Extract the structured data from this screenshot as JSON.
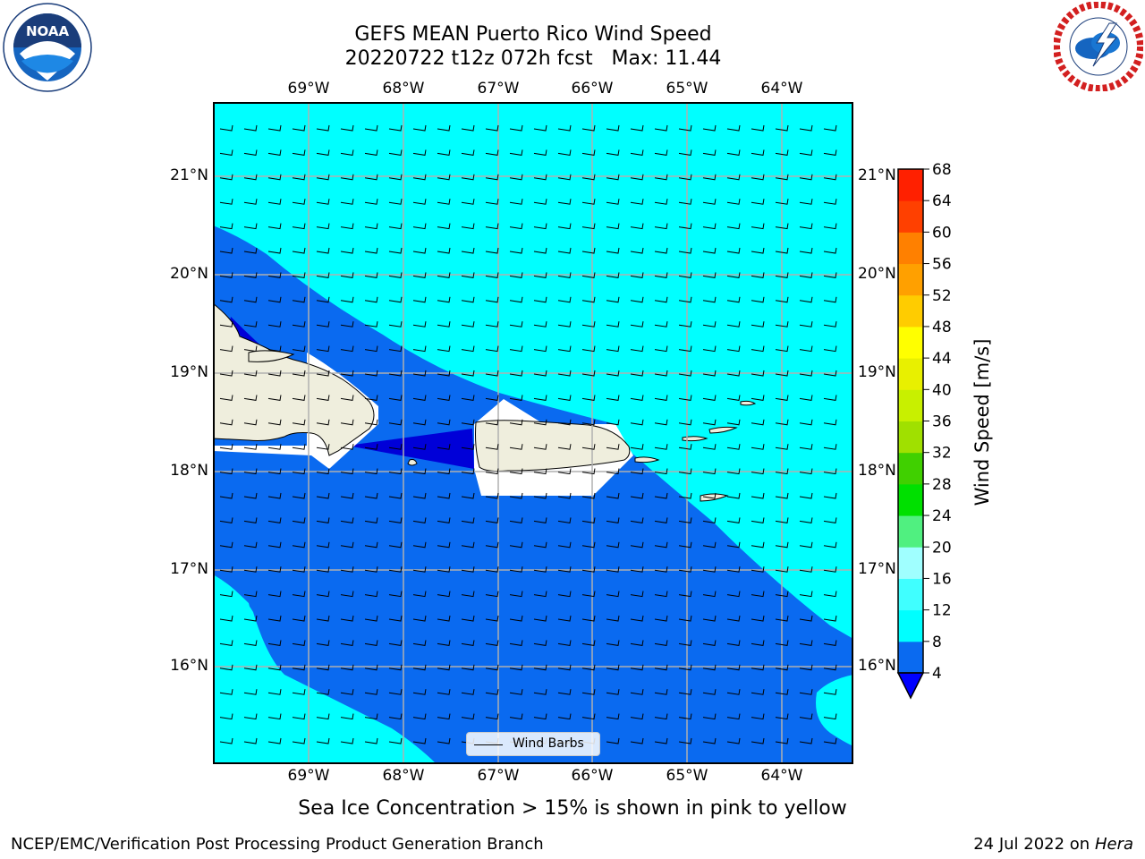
{
  "title": {
    "line1": "GEFS MEAN Puerto Rico Wind Speed",
    "line2": "20220722 t12z 072h fcst   Max: 11.44"
  },
  "map": {
    "lon_labels": [
      "69°W",
      "68°W",
      "67°W",
      "66°W",
      "65°W",
      "64°W"
    ],
    "lat_labels": [
      "21°N",
      "20°N",
      "19°N",
      "18°N",
      "17°N",
      "16°N"
    ],
    "lon_range": [
      -70.0,
      -63.25
    ],
    "lat_range": [
      15.0,
      21.75
    ],
    "barb_direction": "from east",
    "colors": {
      "speed_4_8": "#0a6af0",
      "speed_8_12": "#00ffff",
      "speed_below_4": "#0000d8",
      "land": "#efeedd",
      "missing": "#ffffff",
      "grid": "#b0b0b0"
    },
    "legend": {
      "label": "Wind Barbs"
    }
  },
  "colorbar": {
    "label": "Wind Speed [m/s]",
    "ticks": [
      "4",
      "8",
      "12",
      "16",
      "20",
      "24",
      "28",
      "32",
      "36",
      "40",
      "44",
      "48",
      "52",
      "56",
      "60",
      "64",
      "68"
    ],
    "colors": [
      "#0a6af0",
      "#00ffff",
      "#40ffff",
      "#a0ffff",
      "#50f080",
      "#00e000",
      "#40d000",
      "#a0e000",
      "#c8f000",
      "#e8f000",
      "#ffff00",
      "#ffcc00",
      "#ffa000",
      "#ff8000",
      "#ff4000",
      "#ff2000",
      "#ff0000"
    ],
    "under_color": "#0000ff"
  },
  "footer": {
    "note": "Sea Ice Concentration > 15% is shown in pink to yellow",
    "left": "NCEP/EMC/Verification Post Processing Product Generation Branch",
    "right_date": "24 Jul 2022 on",
    "right_host": "Hera"
  },
  "logos": {
    "noaa": "NOAA",
    "noaa_ring": "NATIONAL OCEANIC AND ATMOSPHERIC ADMINISTRATION",
    "nws_ring": "NATIONAL WEATHER SERVICE"
  }
}
